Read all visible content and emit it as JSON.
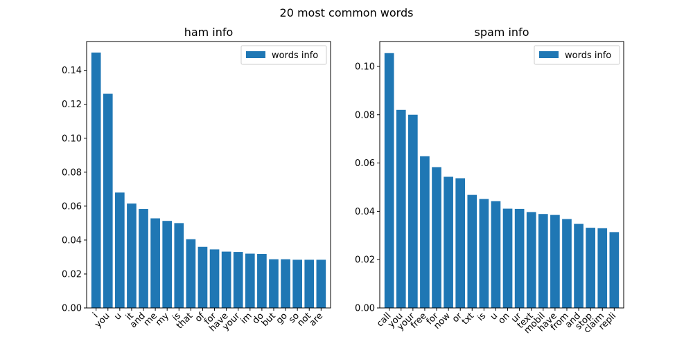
{
  "figure_title": "20 most common words",
  "colors": {
    "bar": "#1f77b4",
    "axis": "#000000",
    "legend_border": "#cccccc"
  },
  "chart_data": [
    {
      "type": "bar",
      "title": "ham info",
      "legend": [
        "words info"
      ],
      "legend_position": "top-right",
      "grid": false,
      "xlabel": "",
      "ylabel": "",
      "ylim": [
        0,
        0.157
      ],
      "yticks": [
        "0.00",
        "0.02",
        "0.04",
        "0.06",
        "0.08",
        "0.10",
        "0.12",
        "0.14"
      ],
      "categories": [
        "i",
        "you",
        "u",
        "it",
        "and",
        "me",
        "my",
        "is",
        "that",
        "of",
        "for",
        "have",
        "your",
        "im",
        "do",
        "but",
        "go",
        "so",
        "not",
        "are"
      ],
      "values": [
        0.1505,
        0.1262,
        0.068,
        0.0615,
        0.0583,
        0.0528,
        0.0513,
        0.05,
        0.0405,
        0.036,
        0.0345,
        0.0332,
        0.033,
        0.032,
        0.0318,
        0.0287,
        0.0287,
        0.0284,
        0.0284,
        0.0284
      ]
    },
    {
      "type": "bar",
      "title": "spam info",
      "legend": [
        "words info"
      ],
      "legend_position": "top-right",
      "grid": false,
      "xlabel": "",
      "ylabel": "",
      "ylim": [
        0,
        0.1103
      ],
      "yticks": [
        "0.00",
        "0.02",
        "0.04",
        "0.06",
        "0.08",
        "0.10"
      ],
      "categories": [
        "call",
        "you",
        "your",
        "free",
        "for",
        "now",
        "or",
        "txt",
        "is",
        "u",
        "on",
        "ur",
        "text",
        "mobil",
        "have",
        "from",
        "and",
        "stop",
        "claim",
        "repli"
      ],
      "values": [
        0.1055,
        0.082,
        0.08,
        0.0628,
        0.0583,
        0.0543,
        0.0537,
        0.0468,
        0.0451,
        0.0442,
        0.0411,
        0.041,
        0.0397,
        0.0389,
        0.0385,
        0.0368,
        0.0348,
        0.0332,
        0.033,
        0.0314
      ]
    }
  ]
}
